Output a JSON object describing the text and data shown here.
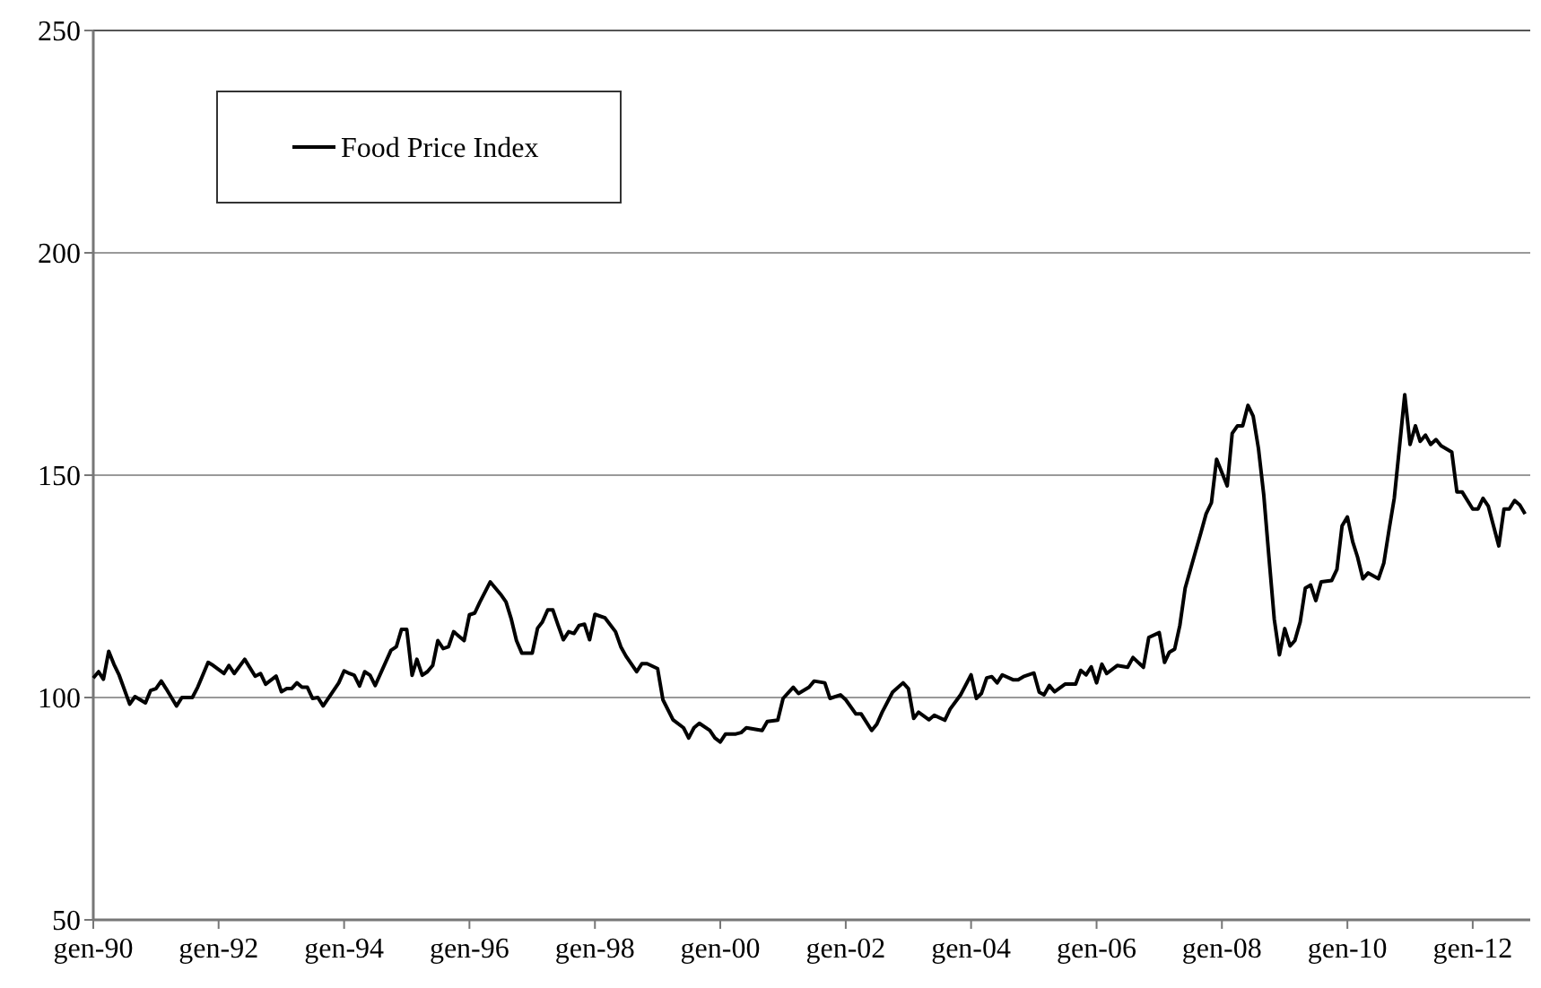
{
  "chart_data": {
    "type": "line",
    "x": [
      "1990-01",
      "1990-02",
      "1990-03",
      "1990-04",
      "1990-05",
      "1990-06",
      "1990-08",
      "1990-09",
      "1990-11",
      "1990-12",
      "1991-01",
      "1991-02",
      "1991-03",
      "1991-05",
      "1991-06",
      "1991-08",
      "1991-09",
      "1991-11",
      "1991-12",
      "1992-02",
      "1992-03",
      "1992-04",
      "1992-06",
      "1992-08",
      "1992-09",
      "1992-10",
      "1992-12",
      "1993-01",
      "1993-02",
      "1993-03",
      "1993-04",
      "1993-05",
      "1993-06",
      "1993-07",
      "1993-08",
      "1993-09",
      "1993-10",
      "1993-12",
      "1994-01",
      "1994-02",
      "1994-03",
      "1994-04",
      "1994-05",
      "1994-06",
      "1994-07",
      "1994-10",
      "1994-11",
      "1994-12",
      "1995-01",
      "1995-02",
      "1995-03",
      "1995-04",
      "1995-05",
      "1995-06",
      "1995-07",
      "1995-08",
      "1995-09",
      "1995-10",
      "1995-12",
      "1996-01",
      "1996-02",
      "1996-03",
      "1996-05",
      "1996-07",
      "1996-08",
      "1996-09",
      "1996-10",
      "1996-11",
      "1997-01",
      "1997-02",
      "1997-03",
      "1997-04",
      "1997-05",
      "1997-06",
      "1997-07",
      "1997-08",
      "1997-09",
      "1997-10",
      "1997-11",
      "1997-12",
      "1998-01",
      "1998-03",
      "1998-05",
      "1998-06",
      "1998-07",
      "1998-09",
      "1998-10",
      "1998-11",
      "1999-01",
      "1999-02",
      "1999-04",
      "1999-06",
      "1999-07",
      "1999-08",
      "1999-09",
      "1999-11",
      "1999-12",
      "2000-01",
      "2000-02",
      "2000-04",
      "2000-05",
      "2000-06",
      "2000-08",
      "2000-09",
      "2000-10",
      "2000-12",
      "2001-01",
      "2001-03",
      "2001-04",
      "2001-06",
      "2001-07",
      "2001-09",
      "2001-10",
      "2001-12",
      "2002-01",
      "2002-03",
      "2002-04",
      "2002-06",
      "2002-07",
      "2002-08",
      "2002-10",
      "2002-12",
      "2003-01",
      "2003-02",
      "2003-03",
      "2003-05",
      "2003-06",
      "2003-08",
      "2003-09",
      "2003-11",
      "2004-01",
      "2004-02",
      "2004-03",
      "2004-04",
      "2004-05",
      "2004-06",
      "2004-07",
      "2004-09",
      "2004-10",
      "2004-11",
      "2005-01",
      "2005-02",
      "2005-03",
      "2005-04",
      "2005-05",
      "2005-07",
      "2005-09",
      "2005-10",
      "2005-11",
      "2005-12",
      "2006-01",
      "2006-02",
      "2006-03",
      "2006-05",
      "2006-07",
      "2006-08",
      "2006-10",
      "2006-11",
      "2007-01",
      "2007-02",
      "2007-03",
      "2007-04",
      "2007-05",
      "2007-06",
      "2007-08",
      "2007-09",
      "2007-10",
      "2007-11",
      "2007-12",
      "2008-02",
      "2008-03",
      "2008-04",
      "2008-05",
      "2008-06",
      "2008-07",
      "2008-08",
      "2008-09",
      "2008-10",
      "2008-11",
      "2008-12",
      "2009-01",
      "2009-02",
      "2009-03",
      "2009-04",
      "2009-05",
      "2009-06",
      "2009-07",
      "2009-08",
      "2009-10",
      "2009-11",
      "2009-12",
      "2010-01",
      "2010-02",
      "2010-03",
      "2010-04",
      "2010-05",
      "2010-07",
      "2010-08",
      "2010-09",
      "2010-10",
      "2010-11",
      "2010-12",
      "2011-01",
      "2011-02",
      "2011-03",
      "2011-04",
      "2011-05",
      "2011-06",
      "2011-07",
      "2011-09",
      "2011-10",
      "2011-11",
      "2012-01",
      "2012-02",
      "2012-03",
      "2012-04",
      "2012-05",
      "2012-06",
      "2012-07",
      "2012-08",
      "2012-09",
      "2012-10",
      "2012-11"
    ],
    "series": [
      {
        "name": "Food Price Index",
        "color": "#000000",
        "values": [
          104.4,
          105.8,
          104.1,
          110.4,
          107.5,
          105,
          98.5,
          100.2,
          98.8,
          101.6,
          102,
          103.7,
          102,
          98.1,
          100,
          100,
          102.3,
          107.9,
          107.2,
          105.4,
          107.2,
          105.4,
          108.6,
          104.8,
          105.4,
          103,
          104.8,
          101.3,
          102,
          102,
          103.3,
          102.3,
          102.3,
          99.8,
          100,
          98.1,
          99.8,
          103.3,
          106,
          105.4,
          105,
          102.6,
          105.8,
          105,
          102.7,
          110.6,
          111.4,
          115.3,
          115.3,
          105,
          108.6,
          105,
          105.8,
          107.2,
          112.8,
          111,
          111.4,
          114.8,
          112.8,
          118.6,
          119,
          121.4,
          126,
          123.2,
          121.5,
          117.6,
          112.8,
          110,
          110,
          115.6,
          117,
          119.7,
          119.7,
          116.2,
          113,
          114.8,
          114.4,
          116.2,
          116.5,
          113,
          118.7,
          117.9,
          114.8,
          111.4,
          109.3,
          105.8,
          107.6,
          107.6,
          106.5,
          99.5,
          95,
          93.2,
          90.9,
          93.2,
          94.2,
          92.6,
          90.9,
          90,
          91.8,
          91.8,
          92.1,
          93.2,
          92.8,
          92.6,
          94.6,
          94.9,
          99.8,
          102.3,
          100.9,
          102.3,
          103.7,
          103.3,
          99.8,
          100.6,
          99.5,
          96.3,
          96.3,
          92.6,
          94,
          96.7,
          101.2,
          103.3,
          102,
          95.3,
          96.7,
          95,
          96,
          94.9,
          97.4,
          100.6,
          105.1,
          99.8,
          100.9,
          104.4,
          104.7,
          103.3,
          105.1,
          104,
          104,
          104.7,
          105.5,
          101.2,
          100.6,
          102.7,
          101.3,
          103,
          103,
          106.1,
          105.1,
          106.9,
          103.3,
          107.5,
          105.4,
          107.2,
          106.8,
          109,
          106.8,
          113.5,
          114.6,
          107.9,
          110.2,
          110.9,
          116.2,
          124.6,
          132.9,
          137.1,
          141.3,
          143.8,
          153.6,
          147.6,
          159.4,
          161.1,
          161.1,
          165.7,
          163.3,
          156,
          145.5,
          131.6,
          117.6,
          109.6,
          115.5,
          111.6,
          112.8,
          117,
          124.6,
          125.3,
          121.8,
          126,
          126.3,
          128.8,
          138.6,
          140.6,
          135,
          131.6,
          126.7,
          128,
          126.7,
          130.2,
          137.8,
          144.8,
          156.6,
          168.1,
          156.9,
          161.1,
          157.6,
          159,
          156.9,
          158,
          156.6,
          155.2,
          146.2,
          146.2,
          142.4,
          142.4,
          144.8,
          143,
          138.6,
          134.1,
          142.4,
          142.4,
          144.3,
          143.3,
          141.3
        ]
      }
    ],
    "xlim": [
      "1990-01",
      "2012-12"
    ],
    "xticks": [
      {
        "value": "1990-01",
        "label": "gen-90"
      },
      {
        "value": "1992-01",
        "label": "gen-92"
      },
      {
        "value": "1994-01",
        "label": "gen-94"
      },
      {
        "value": "1996-01",
        "label": "gen-96"
      },
      {
        "value": "1998-01",
        "label": "gen-98"
      },
      {
        "value": "2000-01",
        "label": "gen-00"
      },
      {
        "value": "2002-01",
        "label": "gen-02"
      },
      {
        "value": "2004-01",
        "label": "gen-04"
      },
      {
        "value": "2006-01",
        "label": "gen-06"
      },
      {
        "value": "2008-01",
        "label": "gen-08"
      },
      {
        "value": "2010-01",
        "label": "gen-10"
      },
      {
        "value": "2012-01",
        "label": "gen-12"
      }
    ],
    "ylim": [
      50,
      250
    ],
    "yticks": [
      50,
      100,
      150,
      200,
      250
    ],
    "grid": "y",
    "legend": "top left",
    "marker": "none",
    "line_style": "solid"
  }
}
